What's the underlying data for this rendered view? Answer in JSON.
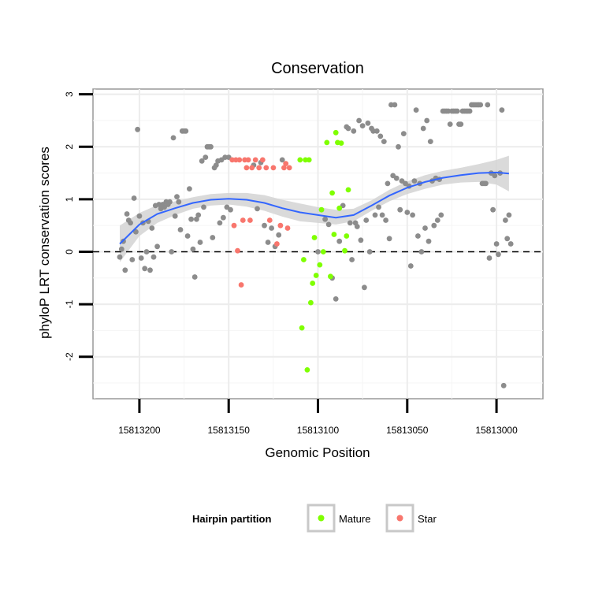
{
  "chart_data": {
    "type": "scatter",
    "title": "Conservation",
    "xlabel": "Genomic Position",
    "ylabel": "phyloP LRT conservation scores",
    "xlim": [
      15813226,
      15812974
    ],
    "ylim": [
      -2.8,
      3.1
    ],
    "x_reversed": true,
    "grid": true,
    "x_ticks": [
      15813200,
      15813150,
      15813100,
      15813050,
      15813000
    ],
    "x_tick_labels": [
      "15813200",
      "15813150",
      "15813100",
      "15813050",
      "15813000"
    ],
    "y_ticks": [
      -2,
      -1,
      0,
      1,
      2,
      3
    ],
    "y_tick_labels": [
      "-2",
      "-1",
      "0",
      "1",
      "2",
      "3"
    ],
    "reference_line": {
      "y": 0,
      "style": "dashed"
    },
    "legend": {
      "title": "Hairpin partition",
      "position": "bottom",
      "entries": [
        {
          "label": "Mature",
          "color": "#7fff00"
        },
        {
          "label": "Star",
          "color": "#f8766d"
        }
      ]
    },
    "colors": {
      "other": "#8c8c8c",
      "mature": "#7fff00",
      "star": "#f8766d",
      "smooth": "#3366ff",
      "band": "#d3d3d3"
    },
    "series": [
      {
        "name": "Other",
        "points": [
          [
            15813211,
            -0.1
          ],
          [
            15813210,
            0.05
          ],
          [
            15813209,
            0.2
          ],
          [
            15813208,
            -0.35
          ],
          [
            15813207,
            0.72
          ],
          [
            15813206,
            0.6
          ],
          [
            15813205,
            0.55
          ],
          [
            15813204,
            -0.15
          ],
          [
            15813203,
            1.02
          ],
          [
            15813202,
            0.38
          ],
          [
            15813201,
            2.33
          ],
          [
            15813200,
            0.68
          ],
          [
            15813199,
            -0.12
          ],
          [
            15813198,
            0.55
          ],
          [
            15813197,
            -0.32
          ],
          [
            15813196,
            0.0
          ],
          [
            15813195,
            0.58
          ],
          [
            15813194,
            -0.35
          ],
          [
            15813193,
            0.45
          ],
          [
            15813192,
            -0.1
          ],
          [
            15813191,
            0.88
          ],
          [
            15813190,
            0.1
          ],
          [
            15813189,
            0.9
          ],
          [
            15813188,
            0.82
          ],
          [
            15813187,
            0.9
          ],
          [
            15813186,
            0.85
          ],
          [
            15813185,
            0.95
          ],
          [
            15813184,
            0.9
          ],
          [
            15813183,
            0.95
          ],
          [
            15813182,
            0.0
          ],
          [
            15813181,
            2.17
          ],
          [
            15813180,
            0.68
          ],
          [
            15813179,
            1.05
          ],
          [
            15813178,
            0.95
          ],
          [
            15813177,
            0.42
          ],
          [
            15813176,
            2.3
          ],
          [
            15813175,
            2.3
          ],
          [
            15813174,
            2.3
          ],
          [
            15813173,
            0.3
          ],
          [
            15813172,
            1.2
          ],
          [
            15813171,
            0.62
          ],
          [
            15813170,
            0.05
          ],
          [
            15813169,
            -0.48
          ],
          [
            15813168,
            0.62
          ],
          [
            15813167,
            0.7
          ],
          [
            15813166,
            0.18
          ],
          [
            15813165,
            1.73
          ],
          [
            15813164,
            0.85
          ],
          [
            15813163,
            1.8
          ],
          [
            15813162,
            2.0
          ],
          [
            15813161,
            2.0
          ],
          [
            15813160,
            2.0
          ],
          [
            15813159,
            0.27
          ],
          [
            15813158,
            1.6
          ],
          [
            15813157,
            1.65
          ],
          [
            15813156,
            1.73
          ],
          [
            15813155,
            0.55
          ],
          [
            15813154,
            1.75
          ],
          [
            15813153,
            0.65
          ],
          [
            15813152,
            1.8
          ],
          [
            15813151,
            0.85
          ],
          [
            15813150,
            1.8
          ],
          [
            15813149,
            0.8
          ],
          [
            15813136,
            1.65
          ],
          [
            15813134,
            0.82
          ],
          [
            15813132,
            1.7
          ],
          [
            15813130,
            0.5
          ],
          [
            15813128,
            0.18
          ],
          [
            15813126,
            0.45
          ],
          [
            15813124,
            0.1
          ],
          [
            15813122,
            0.32
          ],
          [
            15813120,
            1.75
          ],
          [
            15813100,
            0.0
          ],
          [
            15813096,
            0.62
          ],
          [
            15813094,
            0.52
          ],
          [
            15813092,
            -0.5
          ],
          [
            15813090,
            -0.9
          ],
          [
            15813088,
            0.2
          ],
          [
            15813086,
            0.88
          ],
          [
            15813084,
            2.38
          ],
          [
            15813083,
            2.35
          ],
          [
            15813082,
            0.55
          ],
          [
            15813081,
            -0.15
          ],
          [
            15813080,
            2.3
          ],
          [
            15813079,
            0.55
          ],
          [
            15813078,
            0.48
          ],
          [
            15813077,
            2.5
          ],
          [
            15813076,
            0.22
          ],
          [
            15813075,
            2.4
          ],
          [
            15813074,
            -0.68
          ],
          [
            15813073,
            0.6
          ],
          [
            15813072,
            2.45
          ],
          [
            15813071,
            0.0
          ],
          [
            15813070,
            2.35
          ],
          [
            15813069,
            2.3
          ],
          [
            15813068,
            0.7
          ],
          [
            15813067,
            2.3
          ],
          [
            15813066,
            0.85
          ],
          [
            15813065,
            2.2
          ],
          [
            15813064,
            0.7
          ],
          [
            15813063,
            2.1
          ],
          [
            15813062,
            0.6
          ],
          [
            15813061,
            1.3
          ],
          [
            15813060,
            0.25
          ],
          [
            15813059,
            2.8
          ],
          [
            15813058,
            1.45
          ],
          [
            15813057,
            2.8
          ],
          [
            15813056,
            1.4
          ],
          [
            15813055,
            2.0
          ],
          [
            15813054,
            0.8
          ],
          [
            15813053,
            1.35
          ],
          [
            15813052,
            2.25
          ],
          [
            15813051,
            1.3
          ],
          [
            15813050,
            0.75
          ],
          [
            15813049,
            1.25
          ],
          [
            15813048,
            -0.27
          ],
          [
            15813047,
            0.7
          ],
          [
            15813046,
            1.35
          ],
          [
            15813045,
            2.7
          ],
          [
            15813044,
            0.3
          ],
          [
            15813043,
            1.3
          ],
          [
            15813042,
            0.0
          ],
          [
            15813041,
            2.35
          ],
          [
            15813040,
            0.45
          ],
          [
            15813039,
            2.5
          ],
          [
            15813038,
            0.2
          ],
          [
            15813037,
            2.1
          ],
          [
            15813036,
            1.35
          ],
          [
            15813035,
            0.5
          ],
          [
            15813034,
            1.4
          ],
          [
            15813033,
            0.6
          ],
          [
            15813032,
            1.38
          ],
          [
            15813031,
            0.7
          ],
          [
            15813030,
            2.68
          ],
          [
            15813029,
            2.68
          ],
          [
            15813028,
            2.68
          ],
          [
            15813027,
            2.68
          ],
          [
            15813026,
            2.43
          ],
          [
            15813025,
            2.68
          ],
          [
            15813024,
            2.68
          ],
          [
            15813023,
            2.68
          ],
          [
            15813022,
            2.68
          ],
          [
            15813021,
            2.43
          ],
          [
            15813020,
            2.43
          ],
          [
            15813019,
            2.68
          ],
          [
            15813018,
            2.68
          ],
          [
            15813017,
            2.68
          ],
          [
            15813016,
            2.68
          ],
          [
            15813015,
            2.68
          ],
          [
            15813014,
            2.8
          ],
          [
            15813013,
            2.8
          ],
          [
            15813012,
            2.8
          ],
          [
            15813011,
            2.8
          ],
          [
            15813010,
            2.8
          ],
          [
            15813009,
            2.8
          ],
          [
            15813008,
            1.3
          ],
          [
            15813007,
            1.3
          ],
          [
            15813006,
            1.3
          ],
          [
            15813005,
            2.8
          ],
          [
            15813004,
            -0.12
          ],
          [
            15813003,
            1.5
          ],
          [
            15813002,
            0.8
          ],
          [
            15813001,
            1.45
          ],
          [
            15813000,
            0.15
          ],
          [
            15812999,
            -0.05
          ],
          [
            15812998,
            1.5
          ],
          [
            15812997,
            2.7
          ],
          [
            15812996,
            -2.55
          ],
          [
            15812995,
            0.6
          ],
          [
            15812994,
            0.25
          ],
          [
            15812993,
            0.7
          ],
          [
            15812992,
            0.15
          ]
        ]
      },
      {
        "name": "Star",
        "points": [
          [
            15813148,
            1.75
          ],
          [
            15813147,
            0.5
          ],
          [
            15813146,
            1.75
          ],
          [
            15813145,
            0.02
          ],
          [
            15813144,
            1.75
          ],
          [
            15813143,
            -0.63
          ],
          [
            15813142,
            0.6
          ],
          [
            15813141,
            1.75
          ],
          [
            15813140,
            1.6
          ],
          [
            15813139,
            1.75
          ],
          [
            15813138,
            0.6
          ],
          [
            15813137,
            1.6
          ],
          [
            15813135,
            1.75
          ],
          [
            15813133,
            1.6
          ],
          [
            15813131,
            1.75
          ],
          [
            15813129,
            1.6
          ],
          [
            15813127,
            0.6
          ],
          [
            15813125,
            1.6
          ],
          [
            15813123,
            0.15
          ],
          [
            15813121,
            0.5
          ],
          [
            15813119,
            1.6
          ],
          [
            15813118,
            1.68
          ],
          [
            15813117,
            0.45
          ],
          [
            15813116,
            1.6
          ]
        ]
      },
      {
        "name": "Mature",
        "points": [
          [
            15813110,
            1.75
          ],
          [
            15813109,
            -1.45
          ],
          [
            15813108,
            -0.15
          ],
          [
            15813107,
            1.75
          ],
          [
            15813106,
            -2.25
          ],
          [
            15813105,
            1.75
          ],
          [
            15813104,
            -0.97
          ],
          [
            15813103,
            -0.6
          ],
          [
            15813102,
            0.27
          ],
          [
            15813101,
            -0.45
          ],
          [
            15813099,
            -0.25
          ],
          [
            15813098,
            0.8
          ],
          [
            15813097,
            0.0
          ],
          [
            15813095,
            2.08
          ],
          [
            15813093,
            -0.47
          ],
          [
            15813092,
            1.12
          ],
          [
            15813091,
            0.33
          ],
          [
            15813090,
            2.27
          ],
          [
            15813089,
            2.08
          ],
          [
            15813088,
            0.83
          ],
          [
            15813087,
            2.07
          ],
          [
            15813085,
            0.02
          ],
          [
            15813084,
            0.3
          ],
          [
            15813083,
            1.18
          ]
        ]
      }
    ],
    "smooth": {
      "method": "loess",
      "x": [
        15813211,
        15813200,
        15813190,
        15813180,
        15813170,
        15813160,
        15813150,
        15813140,
        15813130,
        15813120,
        15813110,
        15813100,
        15813090,
        15813080,
        15813070,
        15813060,
        15813050,
        15813040,
        15813030,
        15813020,
        15813010,
        15813000,
        15812993
      ],
      "y": [
        0.15,
        0.52,
        0.72,
        0.83,
        0.93,
        0.99,
        1.01,
        0.99,
        0.93,
        0.83,
        0.75,
        0.7,
        0.65,
        0.7,
        0.88,
        1.07,
        1.22,
        1.33,
        1.41,
        1.46,
        1.5,
        1.51,
        1.49
      ],
      "lower": [
        -0.2,
        0.3,
        0.55,
        0.7,
        0.82,
        0.88,
        0.9,
        0.86,
        0.78,
        0.67,
        0.58,
        0.55,
        0.52,
        0.58,
        0.78,
        0.96,
        1.1,
        1.2,
        1.28,
        1.32,
        1.33,
        1.28,
        1.15
      ],
      "upper": [
        0.5,
        0.74,
        0.89,
        0.96,
        1.04,
        1.1,
        1.12,
        1.12,
        1.08,
        0.99,
        0.92,
        0.85,
        0.8,
        0.82,
        0.98,
        1.18,
        1.34,
        1.46,
        1.54,
        1.6,
        1.67,
        1.75,
        1.83
      ]
    }
  }
}
